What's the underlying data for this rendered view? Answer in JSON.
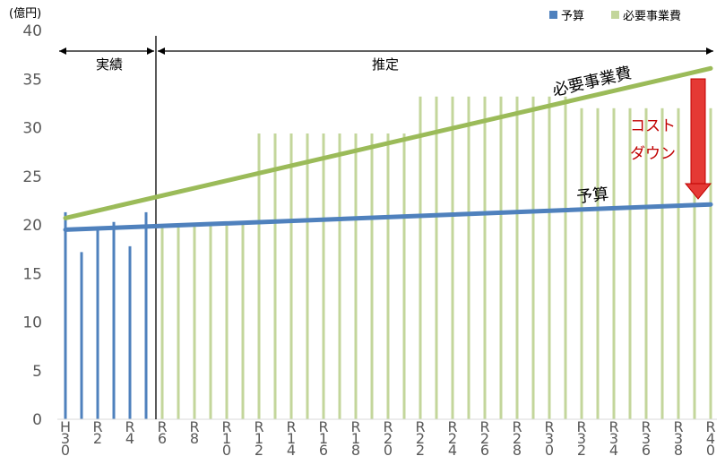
{
  "chart_data": {
    "type": "bar",
    "unit_label": "(億円)",
    "ylim": [
      0,
      40
    ],
    "yticks": [
      0,
      5,
      10,
      15,
      20,
      25,
      30,
      35,
      40
    ],
    "categories": [
      "H30",
      "R1",
      "R2",
      "R3",
      "R4",
      "R5",
      "R6",
      "R7",
      "R8",
      "R9",
      "R10",
      "R11",
      "R12",
      "R13",
      "R14",
      "R15",
      "R16",
      "R17",
      "R18",
      "R19",
      "R20",
      "R21",
      "R22",
      "R23",
      "R24",
      "R25",
      "R26",
      "R27",
      "R28",
      "R29",
      "R30",
      "R31",
      "R32",
      "R33",
      "R34",
      "R35",
      "R36",
      "R37",
      "R38",
      "R39",
      "R40"
    ],
    "tick_labels": [
      {
        "index": 0,
        "lines": [
          "H",
          "3",
          "0"
        ]
      },
      {
        "index": 2,
        "lines": [
          "R",
          "2"
        ]
      },
      {
        "index": 4,
        "lines": [
          "R",
          "4"
        ]
      },
      {
        "index": 6,
        "lines": [
          "R",
          "6"
        ]
      },
      {
        "index": 8,
        "lines": [
          "R",
          "8"
        ]
      },
      {
        "index": 10,
        "lines": [
          "R",
          "1",
          "0"
        ]
      },
      {
        "index": 12,
        "lines": [
          "R",
          "1",
          "2"
        ]
      },
      {
        "index": 14,
        "lines": [
          "R",
          "1",
          "4"
        ]
      },
      {
        "index": 16,
        "lines": [
          "R",
          "1",
          "6"
        ]
      },
      {
        "index": 18,
        "lines": [
          "R",
          "1",
          "8"
        ]
      },
      {
        "index": 20,
        "lines": [
          "R",
          "2",
          "0"
        ]
      },
      {
        "index": 22,
        "lines": [
          "R",
          "2",
          "2"
        ]
      },
      {
        "index": 24,
        "lines": [
          "R",
          "2",
          "4"
        ]
      },
      {
        "index": 26,
        "lines": [
          "R",
          "2",
          "6"
        ]
      },
      {
        "index": 28,
        "lines": [
          "R",
          "2",
          "8"
        ]
      },
      {
        "index": 30,
        "lines": [
          "R",
          "3",
          "0"
        ]
      },
      {
        "index": 32,
        "lines": [
          "R",
          "3",
          "2"
        ]
      },
      {
        "index": 34,
        "lines": [
          "R",
          "3",
          "4"
        ]
      },
      {
        "index": 36,
        "lines": [
          "R",
          "3",
          "6"
        ]
      },
      {
        "index": 38,
        "lines": [
          "R",
          "3",
          "8"
        ]
      },
      {
        "index": 40,
        "lines": [
          "R",
          "4",
          "0"
        ]
      }
    ],
    "series": [
      {
        "name": "予算",
        "color": "#4f81bd",
        "values": [
          21.3,
          17.2,
          19.8,
          20.3,
          17.8,
          21.3,
          null,
          null,
          null,
          null,
          null,
          null,
          null,
          null,
          null,
          null,
          null,
          null,
          null,
          null,
          null,
          null,
          null,
          null,
          null,
          null,
          null,
          null,
          null,
          null,
          null,
          null,
          null,
          null,
          null,
          null,
          null,
          null,
          null,
          null,
          null
        ]
      },
      {
        "name": "必要事業費",
        "color": "#c3d69b",
        "values": [
          null,
          null,
          null,
          null,
          null,
          null,
          20.0,
          20.0,
          20.0,
          20.0,
          20.0,
          20.0,
          29.4,
          29.4,
          29.4,
          29.4,
          29.4,
          29.4,
          29.4,
          29.4,
          29.4,
          29.4,
          33.2,
          33.2,
          33.2,
          33.2,
          33.2,
          33.2,
          33.2,
          33.2,
          33.2,
          33.2,
          32.0,
          32.0,
          32.0,
          32.0,
          32.0,
          32.0,
          32.0,
          32.0,
          32.0
        ]
      }
    ],
    "trend_lines": [
      {
        "label": "必要事業費",
        "color": "#9bbb59",
        "start_value": 20.7,
        "end_value": 36.1
      },
      {
        "label": "予算",
        "color": "#4f81bd",
        "start_value": 19.5,
        "end_value": 22.1
      }
    ],
    "periods": [
      {
        "label": "実績",
        "from": 0,
        "to": 5.5
      },
      {
        "label": "推定",
        "from": 5.5,
        "to": 40
      }
    ],
    "annotation": {
      "lines": [
        "コスト",
        "ダウン"
      ],
      "color": "#c00000"
    },
    "legend": {
      "position": "top-right"
    }
  }
}
